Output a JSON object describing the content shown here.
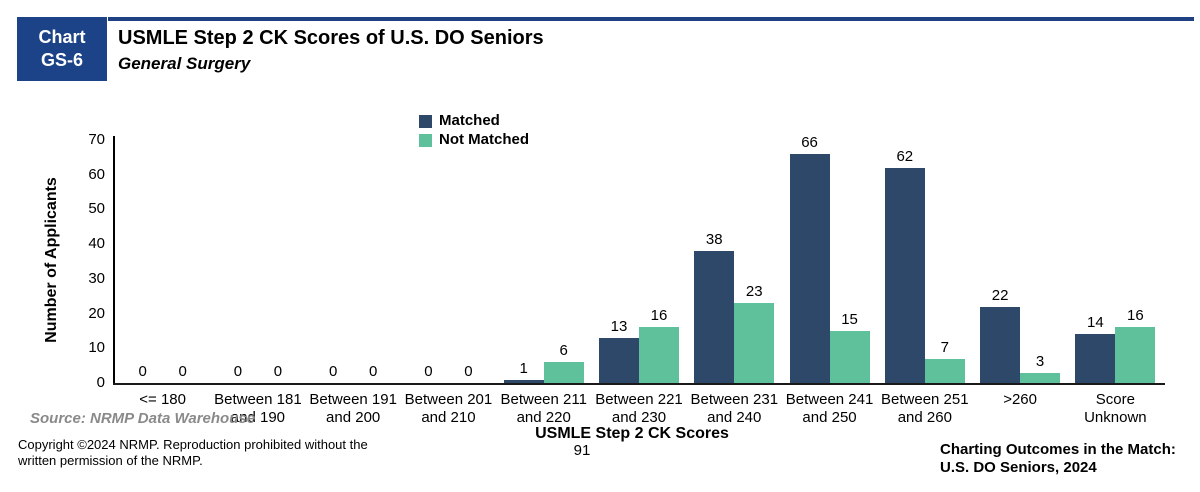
{
  "header": {
    "badge_line1": "Chart",
    "badge_line2": "GS-6",
    "badge_color": "#1c4287",
    "rule_color": "#1f4082",
    "title": "USMLE Step 2 CK Scores of U.S. DO Seniors",
    "subtitle": "General Surgery"
  },
  "chart_data": {
    "type": "bar",
    "categories": [
      [
        "<= 180"
      ],
      [
        "Between 181",
        "and 190"
      ],
      [
        "Between 191",
        "and 200"
      ],
      [
        "Between 201",
        "and 210"
      ],
      [
        "Between 211",
        "and 220"
      ],
      [
        "Between 221",
        "and 230"
      ],
      [
        "Between 231",
        "and 240"
      ],
      [
        "Between 241",
        "and 250"
      ],
      [
        "Between 251",
        "and 260"
      ],
      [
        ">260"
      ],
      [
        "Score",
        "Unknown"
      ]
    ],
    "series": [
      {
        "name": "Matched",
        "color": "#2e486a",
        "values": [
          0,
          0,
          0,
          0,
          1,
          13,
          38,
          66,
          62,
          22,
          14
        ]
      },
      {
        "name": "Not Matched",
        "color": "#5fc09c",
        "values": [
          0,
          0,
          0,
          0,
          6,
          16,
          23,
          15,
          7,
          3,
          16
        ]
      }
    ],
    "xlabel": "USMLE Step 2 CK Scores",
    "ylabel": "Number of Applicants",
    "ylim": [
      0,
      70
    ],
    "yticks": [
      0,
      10,
      20,
      30,
      40,
      50,
      60,
      70
    ],
    "grid": false,
    "legend_position": "top-center",
    "bar_value_labels": true
  },
  "footer": {
    "source": "Source: NRMP Data Warehouse",
    "copyright_line1": "Copyright ©2024 NRMP. Reproduction prohibited without the",
    "copyright_line2": "written permission of the NRMP.",
    "page_number": "91",
    "branding_line1": "Charting Outcomes in the Match:",
    "branding_line2": "U.S. DO Seniors, 2024"
  }
}
